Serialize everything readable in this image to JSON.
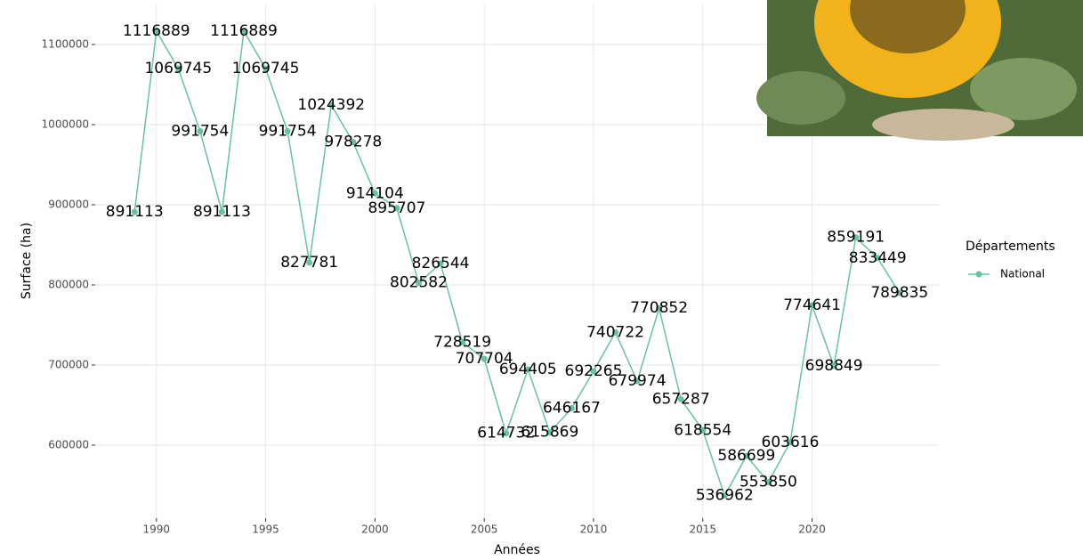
{
  "chart_data": {
    "type": "line",
    "x_label": "Années",
    "y_label": "Surface (ha)",
    "x": [
      1989,
      1990,
      1991,
      1992,
      1993,
      1994,
      1995,
      1996,
      1997,
      1998,
      1999,
      2000,
      2001,
      2002,
      2003,
      2004,
      2005,
      2006,
      2007,
      2008,
      2009,
      2010,
      2011,
      2012,
      2013,
      2014,
      2015,
      2016,
      2017,
      2018,
      2019,
      2020,
      2021,
      2022,
      2023,
      2024
    ],
    "series": [
      {
        "name": "National",
        "color": "#66c2a5",
        "values": [
          891113,
          1116889,
          1069745,
          991754,
          891113,
          1116889,
          1069745,
          991754,
          827781,
          1024392,
          978278,
          914104,
          895707,
          802582,
          826544,
          728519,
          707704,
          614732,
          694405,
          615869,
          646167,
          692265,
          740722,
          679974,
          770852,
          657287,
          618554,
          536962,
          586699,
          553850,
          603616,
          774641,
          698849,
          859191,
          833449,
          789835
        ]
      }
    ],
    "xlim": [
      1987.2,
      2025.8
    ],
    "xticks": [
      1990,
      1995,
      2000,
      2005,
      2010,
      2015,
      2020
    ],
    "ylim": [
      508900,
      1150000
    ],
    "yticks": [
      600000,
      700000,
      800000,
      900000,
      1000000,
      1100000
    ],
    "grid": true,
    "legend_title": "Départements",
    "legend_position": "right"
  }
}
